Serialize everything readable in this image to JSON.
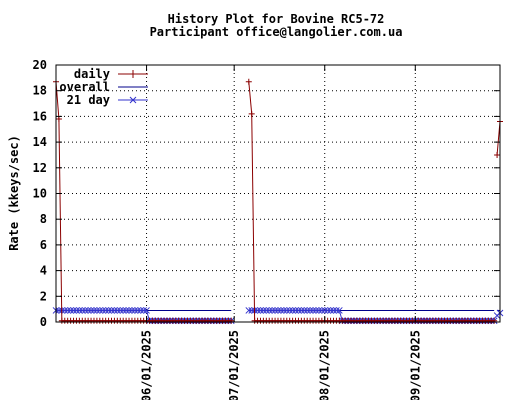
{
  "chart_data": {
    "type": "line",
    "title": "History Plot for Bovine RC5-72",
    "subtitle": "Participant office@langolier.com.ua",
    "ylabel": "Rate (kkeys/sec)",
    "xlabel": "",
    "ylim": [
      0,
      20
    ],
    "yticks": [
      "0",
      "2",
      "4",
      "6",
      "8",
      "10",
      "12",
      "14",
      "16",
      "18",
      "20"
    ],
    "xlim": [
      "2025-05-01",
      "2025-09-30"
    ],
    "xticks": [
      {
        "date": "2025-06-01",
        "label": "06/01/2025"
      },
      {
        "date": "2025-07-01",
        "label": "07/01/2025"
      },
      {
        "date": "2025-08-01",
        "label": "08/01/2025"
      },
      {
        "date": "2025-09-01",
        "label": "09/01/2025"
      }
    ],
    "grid": true,
    "legend_position": "top-left",
    "series": [
      {
        "name": "daily",
        "color": "#8b0000",
        "marker": "plus",
        "segments": [
          {
            "start": "2025-05-01",
            "values": [
              18.7,
              15.8,
              0.1,
              0.1,
              0.1,
              0.1,
              0.1,
              0.1,
              0.1,
              0.1,
              0.1,
              0.1,
              0.1,
              0.1,
              0.1,
              0.1,
              0.1,
              0.1,
              0.1,
              0.1,
              0.1,
              0.1,
              0.1,
              0.1,
              0.1,
              0.1,
              0.1,
              0.1,
              0.1,
              0.1,
              0.1,
              0.1,
              0.1,
              0.1,
              0.1,
              0.1,
              0.1,
              0.1,
              0.1,
              0.1,
              0.1,
              0.1,
              0.1,
              0.1,
              0.1,
              0.1,
              0.1,
              0.1,
              0.1,
              0.1,
              0.1,
              0.1,
              0.1,
              0.1,
              0.1,
              0.1,
              0.1,
              0.1,
              0.1,
              0.1,
              0.1
            ]
          },
          {
            "start": "2025-07-06",
            "values": [
              18.7,
              16.2,
              0.1,
              0.1,
              0.1,
              0.1,
              0.1,
              0.1,
              0.1,
              0.1,
              0.1,
              0.1,
              0.1,
              0.1,
              0.1,
              0.1,
              0.1,
              0.1,
              0.1,
              0.1,
              0.1,
              0.1,
              0.1,
              0.1,
              0.1,
              0.1,
              0.1,
              0.1,
              0.1,
              0.1,
              0.1,
              0.1,
              0.1,
              0.1,
              0.1,
              0.1,
              0.1,
              0.1,
              0.1,
              0.1,
              0.1,
              0.1,
              0.1,
              0.1,
              0.1,
              0.1,
              0.1,
              0.1,
              0.1,
              0.1,
              0.1,
              0.1,
              0.1,
              0.1,
              0.1,
              0.1,
              0.1,
              0.1,
              0.1,
              0.1,
              0.1,
              0.1,
              0.1,
              0.1,
              0.1,
              0.1,
              0.1,
              0.1,
              0.1,
              0.1,
              0.1,
              0.1,
              0.1,
              0.1,
              0.1,
              0.1,
              0.1,
              0.1,
              0.1,
              0.1,
              0.1,
              0.1,
              0.1,
              0.1,
              0.1
            ]
          },
          {
            "start": "2025-09-29",
            "values": [
              13.0,
              15.6
            ]
          }
        ]
      },
      {
        "name": "overall",
        "color": "#00008b",
        "marker": "none",
        "segments": [
          {
            "start": "2025-05-01",
            "values": [
              0.9,
              0.9,
              0.9,
              0.9,
              0.9,
              0.9,
              0.9,
              0.9,
              0.9,
              0.9,
              0.9,
              0.9,
              0.9,
              0.9,
              0.9,
              0.9,
              0.9,
              0.9,
              0.9,
              0.9,
              0.9,
              0.9,
              0.9,
              0.9,
              0.9,
              0.9,
              0.9,
              0.9,
              0.9,
              0.9,
              0.9,
              0.9,
              0.9,
              0.9,
              0.9,
              0.9,
              0.9,
              0.9,
              0.9,
              0.9,
              0.9,
              0.9,
              0.9,
              0.9,
              0.9,
              0.9,
              0.9,
              0.9,
              0.9,
              0.9,
              0.9,
              0.9,
              0.9,
              0.9,
              0.9,
              0.9,
              0.9,
              0.9,
              0.9,
              0.9,
              0.9
            ]
          },
          {
            "start": "2025-07-06",
            "values": [
              0.9,
              0.9,
              0.9,
              0.9,
              0.9,
              0.9,
              0.9,
              0.9,
              0.9,
              0.9,
              0.9,
              0.9,
              0.9,
              0.9,
              0.9,
              0.9,
              0.9,
              0.9,
              0.9,
              0.9,
              0.9,
              0.9,
              0.9,
              0.9,
              0.9,
              0.9,
              0.9,
              0.9,
              0.9,
              0.9,
              0.9,
              0.9,
              0.9,
              0.9,
              0.9,
              0.9,
              0.9,
              0.9,
              0.9,
              0.9,
              0.9,
              0.9,
              0.9,
              0.9,
              0.9,
              0.9,
              0.9,
              0.9,
              0.9,
              0.9,
              0.9,
              0.9,
              0.9,
              0.9,
              0.9,
              0.9,
              0.9,
              0.9,
              0.9,
              0.9,
              0.9,
              0.9,
              0.9,
              0.9,
              0.9,
              0.9,
              0.9,
              0.9,
              0.9,
              0.9,
              0.9,
              0.9,
              0.9,
              0.9,
              0.9,
              0.9,
              0.9,
              0.9,
              0.9,
              0.9,
              0.9,
              0.9,
              0.9,
              0.9,
              0.9
            ]
          },
          {
            "start": "2025-09-29",
            "values": [
              0.9,
              0.9
            ]
          }
        ]
      },
      {
        "name": "21 day",
        "color": "#3333cc",
        "marker": "x",
        "segments": [
          {
            "start": "2025-05-01",
            "values": [
              0.9,
              0.9,
              0.9,
              0.9,
              0.9,
              0.9,
              0.9,
              0.9,
              0.9,
              0.9,
              0.9,
              0.9,
              0.9,
              0.9,
              0.9,
              0.9,
              0.9,
              0.9,
              0.9,
              0.9,
              0.9,
              0.9,
              0.9,
              0.9,
              0.9,
              0.9,
              0.9,
              0.9,
              0.9,
              0.9,
              0.9,
              0.9,
              0.1,
              0.1,
              0.1,
              0.1,
              0.1,
              0.1,
              0.1,
              0.1,
              0.1,
              0.1,
              0.1,
              0.1,
              0.1,
              0.1,
              0.1,
              0.1,
              0.1,
              0.1,
              0.1,
              0.1,
              0.1,
              0.1,
              0.1,
              0.1,
              0.1,
              0.1,
              0.1,
              0.1,
              0.1
            ]
          },
          {
            "start": "2025-07-06",
            "values": [
              0.9,
              0.9,
              0.9,
              0.9,
              0.9,
              0.9,
              0.9,
              0.9,
              0.9,
              0.9,
              0.9,
              0.9,
              0.9,
              0.9,
              0.9,
              0.9,
              0.9,
              0.9,
              0.9,
              0.9,
              0.9,
              0.9,
              0.9,
              0.9,
              0.9,
              0.9,
              0.9,
              0.9,
              0.9,
              0.9,
              0.9,
              0.9,
              0.1,
              0.1,
              0.1,
              0.1,
              0.1,
              0.1,
              0.1,
              0.1,
              0.1,
              0.1,
              0.1,
              0.1,
              0.1,
              0.1,
              0.1,
              0.1,
              0.1,
              0.1,
              0.1,
              0.1,
              0.1,
              0.1,
              0.1,
              0.1,
              0.1,
              0.1,
              0.1,
              0.1,
              0.1,
              0.1,
              0.1,
              0.1,
              0.1,
              0.1,
              0.1,
              0.1,
              0.1,
              0.1,
              0.1,
              0.1,
              0.1,
              0.1,
              0.1,
              0.1,
              0.1,
              0.1,
              0.1,
              0.1,
              0.1,
              0.1,
              0.1,
              0.1,
              0.1
            ]
          },
          {
            "start": "2025-09-29",
            "values": [
              0.5,
              0.7
            ]
          }
        ]
      }
    ]
  }
}
